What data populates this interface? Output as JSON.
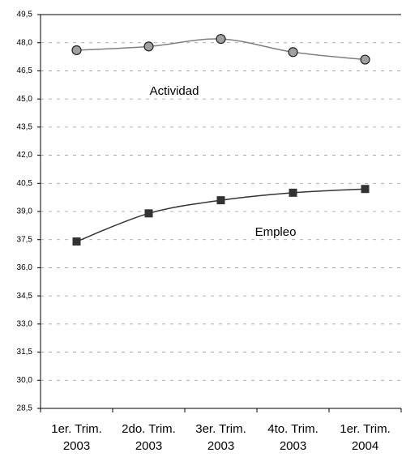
{
  "chart_data": {
    "type": "line",
    "categories": [
      "1er. Trim. 2003",
      "2do. Trim. 2003",
      "3er. Trim. 2003",
      "4to. Trim. 2003",
      "1er. Trim. 2004"
    ],
    "series": [
      {
        "name": "Actividad",
        "color": "#808080",
        "marker": "circle",
        "values": [
          47.6,
          47.8,
          48.2,
          47.5,
          47.1
        ]
      },
      {
        "name": "Empleo",
        "color": "#333333",
        "marker": "square",
        "values": [
          37.4,
          38.9,
          39.6,
          40.0,
          40.2
        ]
      }
    ],
    "ylim": [
      28.5,
      49.5
    ],
    "yticks": [
      {
        "value": 28.5,
        "label": "28,5"
      },
      {
        "value": 30,
        "label": "30,0"
      },
      {
        "value": 31.5,
        "label": "31,5"
      },
      {
        "value": 33,
        "label": "33,0"
      },
      {
        "value": 34.5,
        "label": "34,5"
      },
      {
        "value": 36,
        "label": "36,0"
      },
      {
        "value": 37.5,
        "label": "37,5"
      },
      {
        "value": 39,
        "label": "39,0"
      },
      {
        "value": 40.5,
        "label": "40,5"
      },
      {
        "value": 42,
        "label": "42,0"
      },
      {
        "value": 43.5,
        "label": "43,5"
      },
      {
        "value": 45,
        "label": "45,0"
      },
      {
        "value": 46.5,
        "label": "46,5"
      },
      {
        "value": 48,
        "label": "48,0"
      },
      {
        "value": 49.5,
        "label": "49,5"
      }
    ],
    "grid": true
  }
}
